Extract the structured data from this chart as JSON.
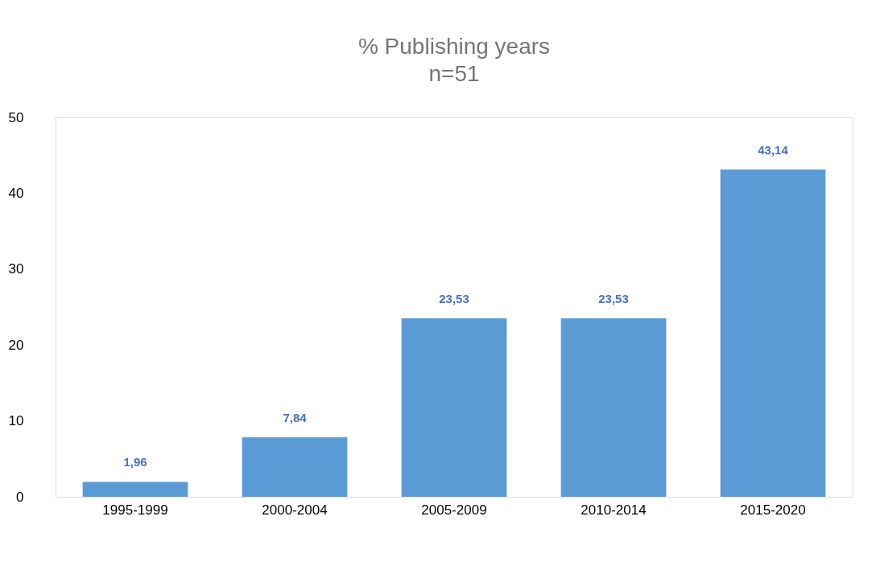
{
  "chart_data": {
    "type": "bar",
    "title": "% Publishing years",
    "subtitle": "n=51",
    "categories": [
      "1995-1999",
      "2000-2004",
      "2005-2009",
      "2010-2014",
      "2015-2020"
    ],
    "values": [
      1.96,
      7.84,
      23.53,
      23.53,
      43.14
    ],
    "value_labels": [
      "1,96",
      "7,84",
      "23,53",
      "23,53",
      "43,14"
    ],
    "color": "#5b9bd5",
    "ylim": [
      0,
      50
    ],
    "yticks": [
      0,
      10,
      20,
      30,
      40,
      50
    ]
  }
}
